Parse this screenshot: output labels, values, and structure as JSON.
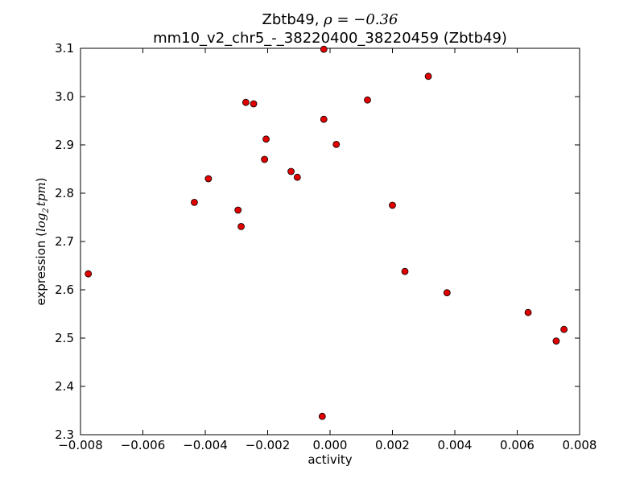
{
  "chart_data": {
    "type": "scatter",
    "title_gene": "Zbtb49,",
    "title_math": "ρ = −0.36",
    "subtitle": "mm10_v2_chr5_-_38220400_38220459 (Zbtb49)",
    "xlabel": "activity",
    "ylabel_prefix": "expression (",
    "ylabel_math": "log",
    "ylabel_sub": "2",
    "ylabel_math2": "tpm",
    "ylabel_suffix": ")",
    "xlim": [
      -0.008,
      0.008
    ],
    "ylim": [
      2.3,
      3.1
    ],
    "x_ticks": [
      -0.008,
      -0.006,
      -0.004,
      -0.002,
      0.0,
      0.002,
      0.004,
      0.006,
      0.008
    ],
    "x_tick_labels": [
      "−0.008",
      "−0.006",
      "−0.004",
      "−0.002",
      "0.000",
      "0.002",
      "0.004",
      "0.006",
      "0.008"
    ],
    "y_ticks": [
      2.3,
      2.4,
      2.5,
      2.6,
      2.7,
      2.8,
      2.9,
      3.0,
      3.1
    ],
    "y_tick_labels": [
      "2.3",
      "2.4",
      "2.5",
      "2.6",
      "2.7",
      "2.8",
      "2.9",
      "3.0",
      "3.1"
    ],
    "grid": false,
    "marker_color": "#e00000",
    "marker_edge": "#000000",
    "points": [
      {
        "x": -0.00775,
        "y": 2.633
      },
      {
        "x": -0.00435,
        "y": 2.781
      },
      {
        "x": -0.0039,
        "y": 2.83
      },
      {
        "x": -0.00295,
        "y": 2.765
      },
      {
        "x": -0.00285,
        "y": 2.731
      },
      {
        "x": -0.0027,
        "y": 2.988
      },
      {
        "x": -0.00245,
        "y": 2.985
      },
      {
        "x": -0.00205,
        "y": 2.912
      },
      {
        "x": -0.0021,
        "y": 2.87
      },
      {
        "x": -0.00125,
        "y": 2.845
      },
      {
        "x": -0.00105,
        "y": 2.833
      },
      {
        "x": -0.0002,
        "y": 3.098
      },
      {
        "x": -0.0002,
        "y": 2.953
      },
      {
        "x": 0.0002,
        "y": 2.901
      },
      {
        "x": 0.0012,
        "y": 2.993
      },
      {
        "x": 0.002,
        "y": 2.775
      },
      {
        "x": 0.0024,
        "y": 2.638
      },
      {
        "x": 0.00315,
        "y": 3.042
      },
      {
        "x": 0.00375,
        "y": 2.594
      },
      {
        "x": 0.00635,
        "y": 2.553
      },
      {
        "x": 0.00725,
        "y": 2.494
      },
      {
        "x": 0.0075,
        "y": 2.518
      },
      {
        "x": -0.00025,
        "y": 2.338
      }
    ]
  }
}
